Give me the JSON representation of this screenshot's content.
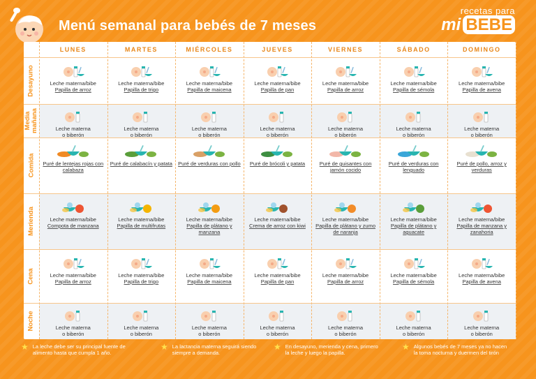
{
  "header": {
    "title": "Menú semanal para bebés de 7 meses",
    "logo_top": "recetas para",
    "logo_mi": "mi",
    "logo_bebe": "BEBE"
  },
  "days": [
    "LUNES",
    "MARTES",
    "MIÉRCOLES",
    "JUEVES",
    "VIERNES",
    "SÁBADO",
    "DOMINGO"
  ],
  "meals": [
    {
      "label": "Desayuno",
      "cells": [
        {
          "t1": "Leche materna/bibe",
          "t2": "Papilla de arroz"
        },
        {
          "t1": "Leche materna/bibe",
          "t2": "Papilla de trigo"
        },
        {
          "t1": "Leche materna/bibe",
          "t2": "Papilla de maicena"
        },
        {
          "t1": "Leche materna/bibe",
          "t2": "Papilla de pan"
        },
        {
          "t1": "Leche materna/bibe",
          "t2": "Papilla de arroz"
        },
        {
          "t1": "Leche materna/bibe",
          "t2": "Papilla de sémola"
        },
        {
          "t1": "Leche materna/bibe",
          "t2": "Papilla de avena"
        }
      ]
    },
    {
      "label": "Media mañana",
      "cells": [
        {
          "t1": "Leche materna",
          "t2": "o biberón"
        },
        {
          "t1": "Leche materna",
          "t2": "o biberón"
        },
        {
          "t1": "Leche materna",
          "t2": "o biberón"
        },
        {
          "t1": "Leche materna",
          "t2": "o biberón"
        },
        {
          "t1": "Leche materna",
          "t2": "o biberón"
        },
        {
          "t1": "Leche materna",
          "t2": "o biberón"
        },
        {
          "t1": "Leche materna",
          "t2": "o biberón"
        }
      ]
    },
    {
      "label": "Comida",
      "cells": [
        {
          "t1": "",
          "t2": "Puré de lentejas rojas con calabaza"
        },
        {
          "t1": "",
          "t2": "Puré de calabacín y patata"
        },
        {
          "t1": "",
          "t2": "Puré de verduras con pollo"
        },
        {
          "t1": "",
          "t2": "Puré de brócoli y patata"
        },
        {
          "t1": "",
          "t2": "Puré de guisantes con jamón cocido"
        },
        {
          "t1": "",
          "t2": "Puré de verduras con lenguado"
        },
        {
          "t1": "",
          "t2": "Puré de pollo, arroz y verduras"
        }
      ]
    },
    {
      "label": "Merienda",
      "cells": [
        {
          "t1": "Leche materna/bibe",
          "t2": "Compota de manzana"
        },
        {
          "t1": "Leche materna/bibe",
          "t2": "Papilla de multifrutas"
        },
        {
          "t1": "Leche materna/bibe",
          "t2": "Papilla de plátano y manzana"
        },
        {
          "t1": "Leche materna/bibe",
          "t2": "Crema de arroz con kiwi"
        },
        {
          "t1": "Leche materna/bibe",
          "t2": "Papilla de plátano y zumo de naranja"
        },
        {
          "t1": "Leche materna/bibe",
          "t2": "Papilla de plátano y aguacate"
        },
        {
          "t1": "Leche materna/bibe",
          "t2": "Papilla de manzana y zanahoria"
        }
      ]
    },
    {
      "label": "Cena",
      "cells": [
        {
          "t1": "Leche materna/bibe",
          "t2": "Papilla de arroz"
        },
        {
          "t1": "Leche materna/bibe",
          "t2": "Papilla de trigo"
        },
        {
          "t1": "Leche materna/bibe",
          "t2": "Papilla de maicena"
        },
        {
          "t1": "Leche materna/bibe",
          "t2": "Papilla de pan"
        },
        {
          "t1": "Leche materna/bibe",
          "t2": "Papilla de arroz"
        },
        {
          "t1": "Leche materna/bibe",
          "t2": "Papilla de sémola"
        },
        {
          "t1": "Leche materna/bibe",
          "t2": "Papilla de avena"
        }
      ]
    },
    {
      "label": "Noche",
      "cells": [
        {
          "t1": "Leche materna",
          "t2": "o biberón"
        },
        {
          "t1": "Leche materna",
          "t2": "o biberón"
        },
        {
          "t1": "Leche materna",
          "t2": "o biberón"
        },
        {
          "t1": "Leche materna",
          "t2": "o biberón"
        },
        {
          "t1": "Leche materna",
          "t2": "o biberón"
        },
        {
          "t1": "Leche materna",
          "t2": "o biberón"
        },
        {
          "t1": "Leche materna",
          "t2": "o biberón"
        }
      ]
    }
  ],
  "notes": [
    "La leche debe ser su principal fuente de alimento hasta que cumpla 1 año.",
    "La lactancia materna seguirá siendo siempre a demanda.",
    "En desayuno, merienda y cena, primero la leche y luego la papilla.",
    "Algunos bebés de 7 meses ya no hacen la toma nocturna y duermen del tirón"
  ],
  "colors": {
    "accent": "#f7941d",
    "teal": "#27b5b0",
    "label": "#f7941d"
  }
}
